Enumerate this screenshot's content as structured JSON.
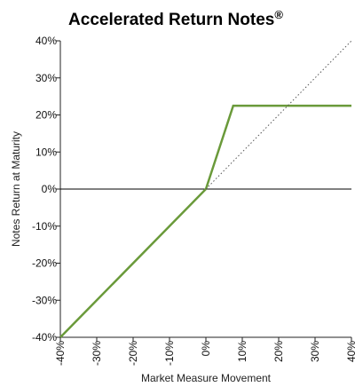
{
  "chart_data": {
    "type": "line",
    "title": "Accelerated Return Notes",
    "title_mark": "®",
    "xlabel": "Market Measure Movement",
    "ylabel": "Notes Return at Maturity",
    "xlim": [
      -40,
      40
    ],
    "ylim": [
      -40,
      40
    ],
    "x_ticks": [
      -40,
      -30,
      -20,
      -10,
      0,
      10,
      20,
      30,
      40
    ],
    "y_ticks": [
      -40,
      -30,
      -20,
      -10,
      0,
      10,
      20,
      30,
      40
    ],
    "x_tick_labels": [
      "-40%",
      "-30%",
      "-20%",
      "-10%",
      "0%",
      "10%",
      "20%",
      "30%",
      "40%"
    ],
    "y_tick_labels": [
      "-40%",
      "-30%",
      "-20%",
      "-10%",
      "0%",
      "10%",
      "20%",
      "30%",
      "40%"
    ],
    "grid": false,
    "series": [
      {
        "role": "notes-return",
        "color": "#6a9a3a",
        "style": "solid",
        "points": [
          [
            -40,
            -40
          ],
          [
            0,
            0
          ],
          [
            7.5,
            22.5
          ],
          [
            40,
            22.5
          ]
        ]
      },
      {
        "role": "market-measure",
        "color": "#555555",
        "style": "dotted",
        "points": [
          [
            0,
            0
          ],
          [
            40,
            40
          ]
        ]
      }
    ],
    "reference_lines": [
      {
        "axis": "y",
        "value": 0,
        "color": "#000000"
      }
    ]
  }
}
